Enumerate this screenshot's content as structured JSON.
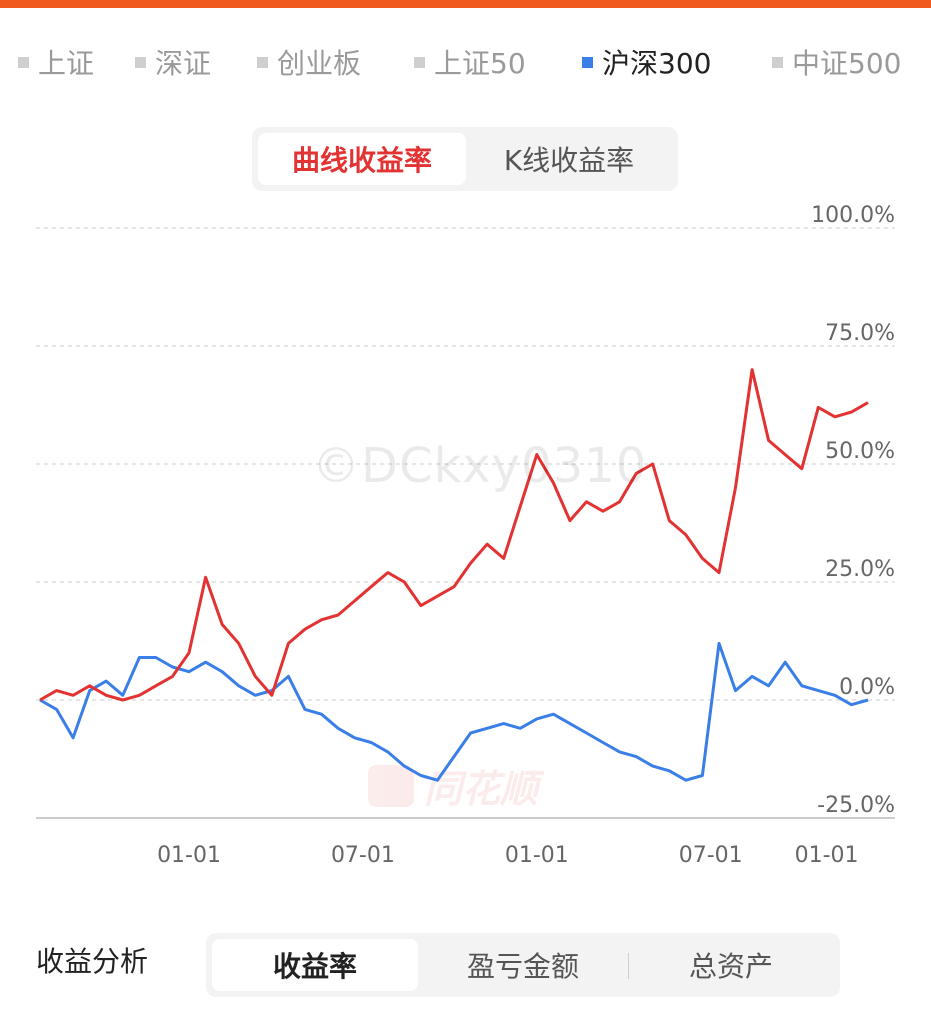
{
  "colors": {
    "accent_stripe": "#f05a1f",
    "strategy": "#e33232",
    "benchmark": "#3a7ee8",
    "grid": "#dddddd",
    "axis_text": "#666666"
  },
  "index_tabs": [
    {
      "label": "上证",
      "active": false
    },
    {
      "label": "深证",
      "active": false
    },
    {
      "label": "创业板",
      "active": false
    },
    {
      "label": "上证50",
      "active": false
    },
    {
      "label": "沪深300",
      "active": true
    },
    {
      "label": "中证500",
      "active": false
    }
  ],
  "mode_toggle": {
    "active": "曲线收益率",
    "inactive": "K线收益率"
  },
  "watermark": {
    "user": "©DCkxy0310",
    "brand": "同花顺"
  },
  "analysis": {
    "label": "收益分析",
    "tabs": [
      {
        "label": "收益率",
        "active": true
      },
      {
        "label": "盈亏金额",
        "active": false
      },
      {
        "label": "总资产",
        "active": false
      }
    ]
  },
  "chart_data": {
    "type": "line",
    "y_ticks": [
      "100.0%",
      "75.0%",
      "50.0%",
      "25.0%",
      "0.0%",
      "-25.0%"
    ],
    "x_ticks": [
      "01-01",
      "07-01",
      "01-01",
      "07-01",
      "01-01"
    ],
    "ylim": [
      -25,
      100
    ],
    "grid": true,
    "x": [
      0,
      2,
      4,
      6,
      8,
      10,
      12,
      14,
      16,
      18,
      20,
      22,
      24,
      26,
      28,
      30,
      32,
      34,
      36,
      38,
      40,
      42,
      44,
      46,
      48,
      50,
      52,
      54,
      56,
      58,
      60,
      62,
      64,
      66,
      68,
      70,
      72,
      74,
      76,
      78,
      80,
      82,
      84,
      86,
      88,
      90,
      92,
      94,
      96,
      98,
      100
    ],
    "series": [
      {
        "values": [
          0,
          2,
          1,
          3,
          1,
          0,
          1,
          3,
          5,
          10,
          26,
          16,
          12,
          5,
          1,
          12,
          15,
          17,
          18,
          21,
          24,
          27,
          25,
          20,
          22,
          24,
          29,
          33,
          30,
          41,
          52,
          46,
          38,
          42,
          40,
          42,
          48,
          50,
          38,
          35,
          30,
          27,
          45,
          70,
          55,
          52,
          49,
          62,
          60,
          61,
          63
        ]
      },
      {
        "values": [
          0,
          -2,
          -8,
          2,
          4,
          1,
          9,
          9,
          7,
          6,
          8,
          6,
          3,
          1,
          2,
          5,
          -2,
          -3,
          -6,
          -8,
          -9,
          -11,
          -14,
          -16,
          -17,
          -12,
          -7,
          -6,
          -5,
          -6,
          -4,
          -3,
          -5,
          -7,
          -9,
          -11,
          -12,
          -14,
          -15,
          -17,
          -16,
          12,
          2,
          5,
          3,
          8,
          3,
          2,
          1,
          -1,
          0
        ]
      }
    ]
  }
}
